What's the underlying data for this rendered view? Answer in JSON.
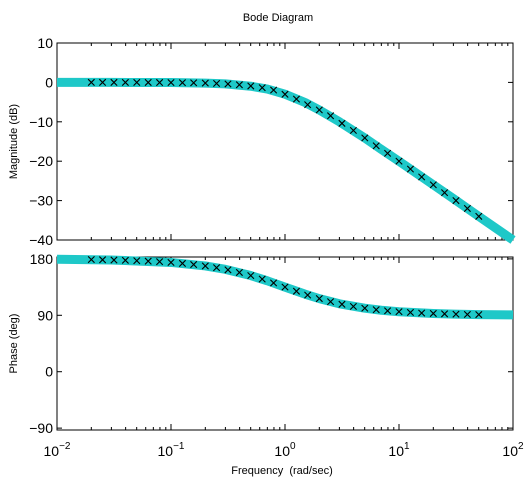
{
  "colors": {
    "fit_band": "#1ec8c8",
    "marker": "#000000",
    "axes": "#000000",
    "background": "#ffffff"
  },
  "chart_data": {
    "type": "line",
    "title": "Bode Diagram",
    "xlabel": "Frequency  (rad/sec)",
    "xscale": "log",
    "xlim": [
      0.01,
      100
    ],
    "x_tick_labels": [
      {
        "base": "10",
        "exp": "−2",
        "value": 0.01
      },
      {
        "base": "10",
        "exp": "−1",
        "value": 0.1
      },
      {
        "base": "10",
        "exp": "0",
        "value": 1
      },
      {
        "base": "10",
        "exp": "1",
        "value": 10
      },
      {
        "base": "10",
        "exp": "2",
        "value": 100
      }
    ],
    "grid": false,
    "panels": [
      {
        "name": "magnitude",
        "ylabel": "Magnitude (dB)",
        "ylim": [
          -40,
          10
        ],
        "yticks": [
          10,
          0,
          -10,
          -20,
          -30,
          -40
        ],
        "ytick_labels": [
          "10",
          "0",
          "−10",
          "−20",
          "−30",
          "−40"
        ],
        "series": [
          {
            "style": "thick cyan band",
            "x": [
              0.01,
              0.03,
              0.1,
              0.2,
              0.3,
              0.5,
              0.7,
              1,
              1.5,
              2,
              3,
              5,
              7,
              10,
              20,
              30,
              50,
              100
            ],
            "y": [
              0,
              0,
              -0.04,
              -0.17,
              -0.37,
              -0.97,
              -1.7,
              -3,
              -5.1,
              -7,
              -10,
              -14.1,
              -17,
              -20,
              -26,
              -29.5,
              -34,
              -40
            ]
          },
          {
            "style": "x markers",
            "x": [
              0.02,
              0.0251,
              0.0316,
              0.0398,
              0.0501,
              0.0631,
              0.0794,
              0.1,
              0.126,
              0.158,
              0.2,
              0.251,
              0.316,
              0.398,
              0.501,
              0.631,
              0.794,
              1,
              1.26,
              1.58,
              2,
              2.51,
              3.16,
              3.98,
              5.01,
              6.31,
              7.94,
              10,
              12.6,
              15.8,
              20,
              25.1,
              31.6,
              39.8,
              50.1
            ],
            "y": [
              0,
              0,
              0,
              -0.01,
              -0.01,
              -0.02,
              -0.03,
              -0.04,
              -0.07,
              -0.11,
              -0.17,
              -0.26,
              -0.4,
              -0.6,
              -0.91,
              -1.34,
              -1.94,
              -3.01,
              -4.23,
              -5.65,
              -6.99,
              -8.47,
              -10.4,
              -12.2,
              -14.1,
              -16.1,
              -18.0,
              -20,
              -22.0,
              -24.0,
              -26.0,
              -28.0,
              -30.0,
              -32.0,
              -34.0
            ]
          }
        ]
      },
      {
        "name": "phase",
        "ylabel": "Phase (deg)",
        "ylim": [
          -93,
          183
        ],
        "yticks": [
          180,
          90,
          0,
          -90
        ],
        "ytick_labels": [
          "180",
          "90",
          "0",
          "−90"
        ],
        "series": [
          {
            "style": "thick cyan band",
            "x": [
              0.01,
              0.03,
              0.1,
              0.2,
              0.3,
              0.5,
              0.7,
              1,
              1.5,
              2,
              3,
              5,
              7,
              10,
              20,
              30,
              50,
              100
            ],
            "y": [
              179.4,
              178.3,
              174.3,
              168.7,
              163.3,
              153.4,
              145,
              135,
              123.7,
              116.6,
              108.4,
              101.3,
              98.1,
              95.7,
              92.9,
              91.9,
              91.1,
              90.6
            ]
          },
          {
            "style": "x markers",
            "x": [
              0.02,
              0.0251,
              0.0316,
              0.0398,
              0.0501,
              0.0631,
              0.0794,
              0.1,
              0.126,
              0.158,
              0.2,
              0.251,
              0.316,
              0.398,
              0.501,
              0.631,
              0.794,
              1,
              1.26,
              1.58,
              2,
              2.51,
              3.16,
              3.98,
              5.01,
              6.31,
              7.94,
              10,
              12.6,
              15.8,
              20,
              25.1,
              31.6,
              39.8,
              50.1
            ],
            "y": [
              178.9,
              178.6,
              178.2,
              177.7,
              177.1,
              176.4,
              175.5,
              174.3,
              172.8,
              171.0,
              168.7,
              165.9,
              162.5,
              158.3,
              153.4,
              147.8,
              141.6,
              135,
              128.4,
              122.3,
              116.6,
              111.7,
              107.6,
              104.1,
              101.3,
              99.0,
              97.2,
              95.7,
              94.5,
              93.6,
              92.9,
              92.3,
              91.8,
              91.4,
              91.1
            ]
          }
        ]
      }
    ]
  }
}
